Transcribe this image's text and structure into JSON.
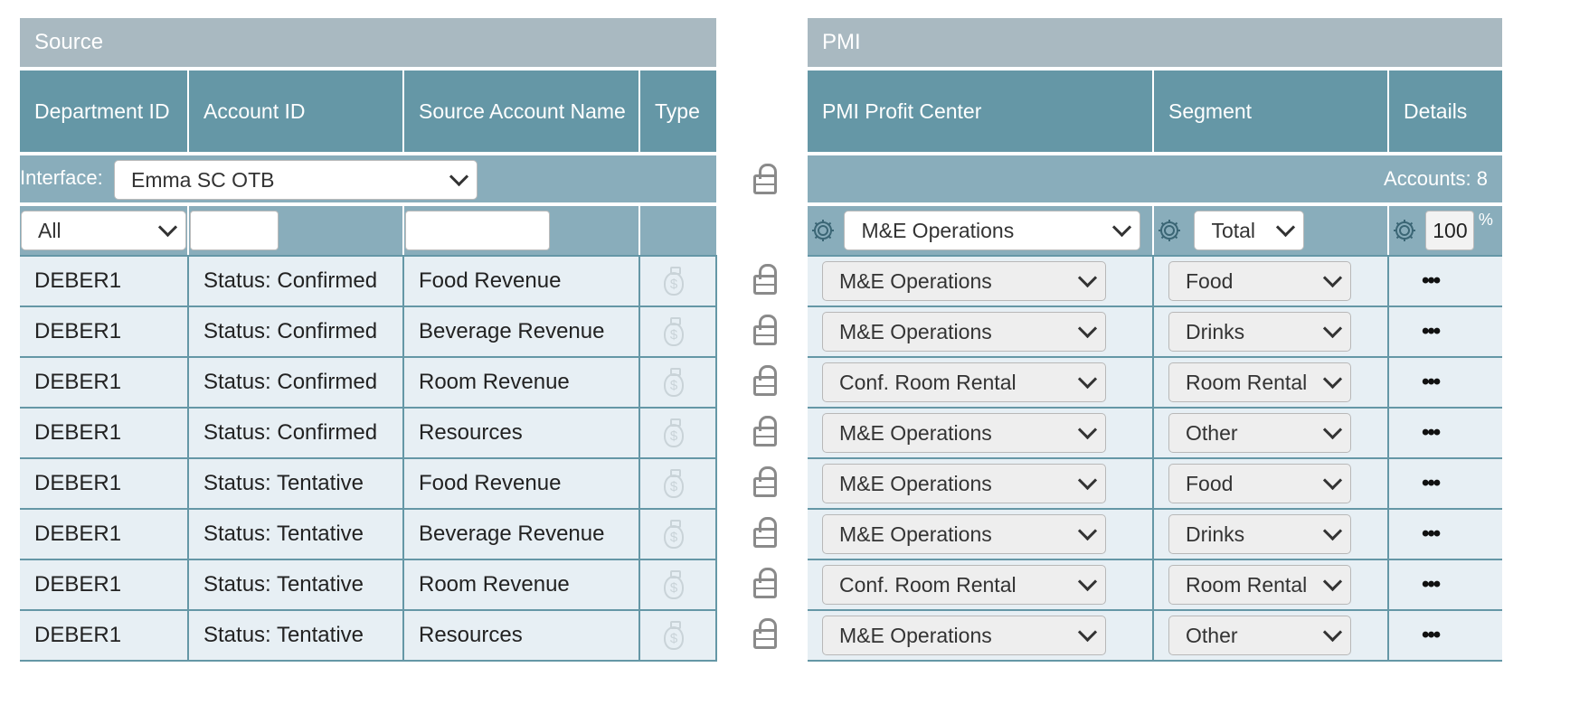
{
  "source": {
    "title": "Source",
    "columns": [
      "Department ID",
      "Account ID",
      "Source Account Name",
      "Type"
    ],
    "interface_label": "Interface:",
    "interface_value": "Emma SC OTB",
    "filter_value": "All"
  },
  "pmi": {
    "title": "PMI",
    "columns": [
      "PMI Profit Center",
      "Segment",
      "Details"
    ],
    "accounts_label": "Accounts: 8",
    "bulk_profit_center": "M&E Operations",
    "bulk_segment": "Total",
    "bulk_percent": "100",
    "percent_sign": "%"
  },
  "rows": [
    {
      "dept": "DEBER1",
      "account": "Status: Confirmed",
      "name": "Food Revenue",
      "profit_center": "M&E Operations",
      "segment": "Food"
    },
    {
      "dept": "DEBER1",
      "account": "Status: Confirmed",
      "name": "Beverage Revenue",
      "profit_center": "M&E Operations",
      "segment": "Drinks"
    },
    {
      "dept": "DEBER1",
      "account": "Status: Confirmed",
      "name": "Room Revenue",
      "profit_center": "Conf. Room Rental",
      "segment": "Room Rental"
    },
    {
      "dept": "DEBER1",
      "account": "Status: Confirmed",
      "name": "Resources",
      "profit_center": "M&E Operations",
      "segment": "Other"
    },
    {
      "dept": "DEBER1",
      "account": "Status: Tentative",
      "name": "Food Revenue",
      "profit_center": "M&E Operations",
      "segment": "Food"
    },
    {
      "dept": "DEBER1",
      "account": "Status: Tentative",
      "name": "Beverage Revenue",
      "profit_center": "M&E Operations",
      "segment": "Drinks"
    },
    {
      "dept": "DEBER1",
      "account": "Status: Tentative",
      "name": "Room Revenue",
      "profit_center": "Conf. Room Rental",
      "segment": "Room Rental"
    },
    {
      "dept": "DEBER1",
      "account": "Status: Tentative",
      "name": "Resources",
      "profit_center": "M&E Operations",
      "segment": "Other"
    }
  ],
  "icons": {
    "type_icon": "money-bag-icon",
    "lock_icon": "lock-icon",
    "gear_icon": "gear-icon",
    "details_icon": "more-dots-icon",
    "details_glyph": "•••",
    "type_glyph": "$"
  },
  "colors": {
    "title_bar": "#a9b9c1",
    "header": "#6597a6",
    "filter_bar": "#89adbb",
    "row_bg": "#e7eff4"
  }
}
